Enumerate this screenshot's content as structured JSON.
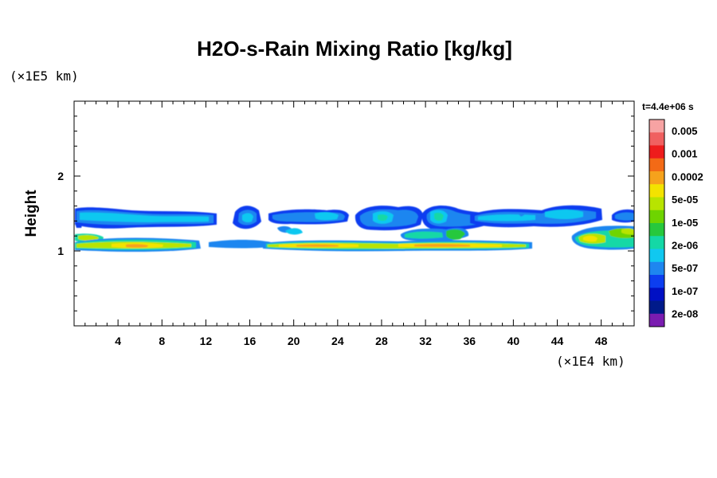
{
  "chart_data": {
    "type": "heatmap",
    "title": "H2O-s-Rain Mixing Ratio [kg/kg]",
    "ylabel": "Height",
    "y_unit": "(×1E5 km)",
    "x_unit": "(×1E4 km)",
    "time_label": "t=4.4e+06 s",
    "xlim": [
      0,
      51
    ],
    "ylim": [
      0,
      3
    ],
    "x_ticks": [
      "4",
      "8",
      "12",
      "16",
      "20",
      "24",
      "28",
      "32",
      "36",
      "40",
      "44",
      "48"
    ],
    "y_ticks": [
      "1",
      "2"
    ],
    "colorbar": {
      "labels": [
        "0.005",
        "0.001",
        "0.0002",
        "5e-05",
        "1e-05",
        "2e-06",
        "5e-07",
        "1e-07",
        "2e-08"
      ],
      "colors": [
        "#f7a3a3",
        "#f06060",
        "#ee1c1c",
        "#f36a16",
        "#f6a21c",
        "#f3e300",
        "#b8e400",
        "#6ed400",
        "#27c83c",
        "#14d8a6",
        "#10c8f0",
        "#1e86f0",
        "#0c3ef0",
        "#0010c4",
        "#001a8a",
        "#7a1cb0"
      ]
    },
    "features": [
      {
        "level": "1e-07",
        "x": [
          0,
          50.5
        ],
        "y": [
          1.3,
          1.6
        ],
        "desc": "upper cloud band, scattered blobs"
      },
      {
        "level": "5e-05",
        "x": [
          0,
          12
        ],
        "y": [
          1.0,
          1.15
        ],
        "desc": "lower rain band"
      },
      {
        "level": "5e-05",
        "x": [
          14,
          42
        ],
        "y": [
          1.0,
          1.12
        ],
        "desc": "lower rain band"
      },
      {
        "level": "1e-05",
        "x": [
          45,
          50.5
        ],
        "y": [
          1.0,
          1.3
        ],
        "desc": "lower rain band"
      }
    ]
  }
}
